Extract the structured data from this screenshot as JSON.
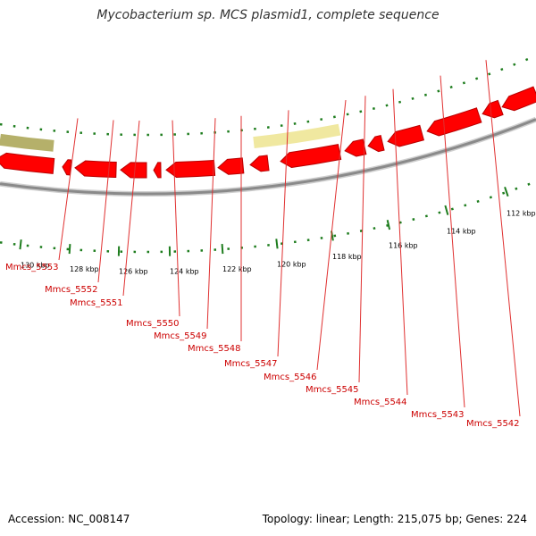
{
  "title": "Mycobacterium sp. MCS plasmid1, complete sequence",
  "footer": {
    "accession": "Accession: NC_008147",
    "topology": "Topology: linear; Length: 215,075 bp; Genes: 224"
  },
  "colors": {
    "background": "#ffffff",
    "backbone": "#8a8a8a",
    "gene": "#ff0000",
    "gene_shade": "#b80000",
    "olive_feature": "#b5b06a",
    "light_feature": "#f0e8a0",
    "tick": "#1e7d1e",
    "gene_label": "#cc0000",
    "leader_line": "#e03030"
  },
  "ruler": {
    "unit": "kbp",
    "labels": [
      "130 kbp",
      "128 kbp",
      "126 kbp",
      "124 kbp",
      "122 kbp",
      "120 kbp",
      "118 kbp",
      "116 kbp",
      "114 kbp",
      "112 kbp"
    ]
  },
  "genes": [
    "Mmcs_5553",
    "Mmcs_5552",
    "Mmcs_5551",
    "Mmcs_5550",
    "Mmcs_5549",
    "Mmcs_5548",
    "Mmcs_5547",
    "Mmcs_5546",
    "Mmcs_5545",
    "Mmcs_5544",
    "Mmcs_5543",
    "Mmcs_5542"
  ]
}
